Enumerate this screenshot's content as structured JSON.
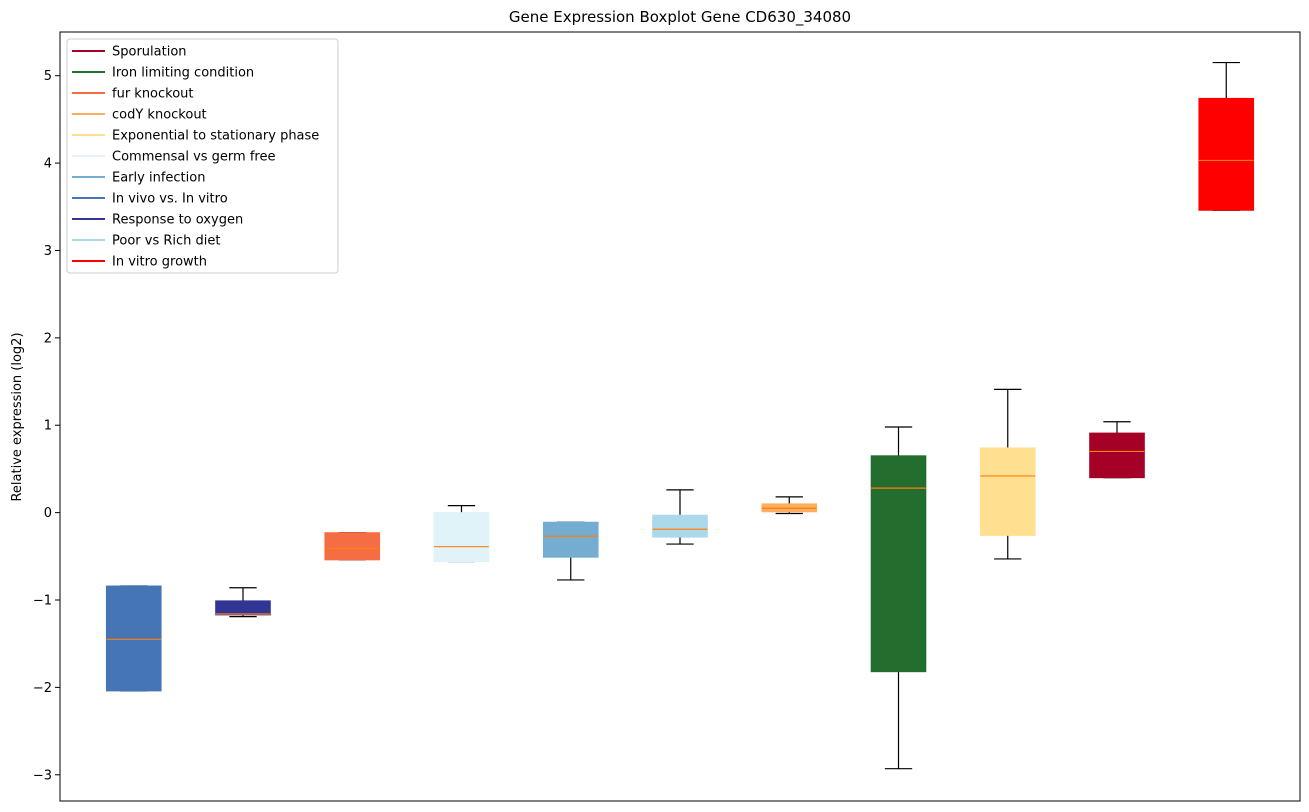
{
  "chart_data": {
    "type": "box",
    "title": "Gene Expression Boxplot Gene CD630_34080",
    "xlabel": "",
    "ylabel": "Relative expression (log2)",
    "ylim": [
      -3.3,
      5.5
    ],
    "yticks": [
      -3,
      -2,
      -1,
      0,
      1,
      2,
      3,
      4,
      5
    ],
    "ytick_labels": [
      "−3",
      "−2",
      "−1",
      "0",
      "1",
      "2",
      "3",
      "4",
      "5"
    ],
    "grid": false,
    "legend_position": "top-left",
    "legend": [
      {
        "label": "Sporulation",
        "color": "#a50026"
      },
      {
        "label": "Iron limiting condition",
        "color": "#236d2f"
      },
      {
        "label": "fur knockout",
        "color": "#f46d43"
      },
      {
        "label": "codY knockout",
        "color": "#fdae61"
      },
      {
        "label": "Exponential to stationary phase",
        "color": "#fee090"
      },
      {
        "label": "Commensal vs germ free",
        "color": "#e0f3f8"
      },
      {
        "label": "Early infection",
        "color": "#74add1"
      },
      {
        "label": "In vivo vs. In vitro",
        "color": "#4575b4"
      },
      {
        "label": "Response to oxygen",
        "color": "#313695"
      },
      {
        "label": "Poor vs Rich diet",
        "color": "#abd9e9"
      },
      {
        "label": "In vitro growth",
        "color": "#ff0000"
      }
    ],
    "boxes": [
      {
        "color": "#4575b4",
        "whisker_low": -2.04,
        "q1": -2.04,
        "median": -1.45,
        "q3": -0.84,
        "whisker_high": -0.84
      },
      {
        "color": "#313695",
        "whisker_low": -1.19,
        "q1": -1.17,
        "median": -1.16,
        "q3": -1.01,
        "whisker_high": -0.86
      },
      {
        "color": "#f46d43",
        "whisker_low": -0.54,
        "q1": -0.54,
        "median": -0.41,
        "q3": -0.23,
        "whisker_high": -0.23
      },
      {
        "color": "#e0f3f8",
        "whisker_low": -0.56,
        "q1": -0.56,
        "median": -0.39,
        "q3": 0.0,
        "whisker_high": 0.08
      },
      {
        "color": "#74add1",
        "whisker_low": -0.77,
        "q1": -0.51,
        "median": -0.27,
        "q3": -0.11,
        "whisker_high": -0.11
      },
      {
        "color": "#abd9e9",
        "whisker_low": -0.36,
        "q1": -0.28,
        "median": -0.19,
        "q3": -0.03,
        "whisker_high": 0.26
      },
      {
        "color": "#fdae61",
        "whisker_low": -0.01,
        "q1": 0.01,
        "median": 0.05,
        "q3": 0.1,
        "whisker_high": 0.18
      },
      {
        "color": "#236d2f",
        "whisker_low": -2.93,
        "q1": -1.82,
        "median": 0.28,
        "q3": 0.65,
        "whisker_high": 0.98
      },
      {
        "color": "#fee090",
        "whisker_low": -0.53,
        "q1": -0.26,
        "median": 0.42,
        "q3": 0.74,
        "whisker_high": 1.41
      },
      {
        "color": "#a50026",
        "whisker_low": 0.4,
        "q1": 0.4,
        "median": 0.7,
        "q3": 0.91,
        "whisker_high": 1.04
      },
      {
        "color": "#ff0000",
        "whisker_low": 3.46,
        "q1": 3.46,
        "median": 4.03,
        "q3": 4.74,
        "whisker_high": 5.15
      }
    ],
    "median_color": "#ff7f0e",
    "whisker_color": "#000000"
  }
}
